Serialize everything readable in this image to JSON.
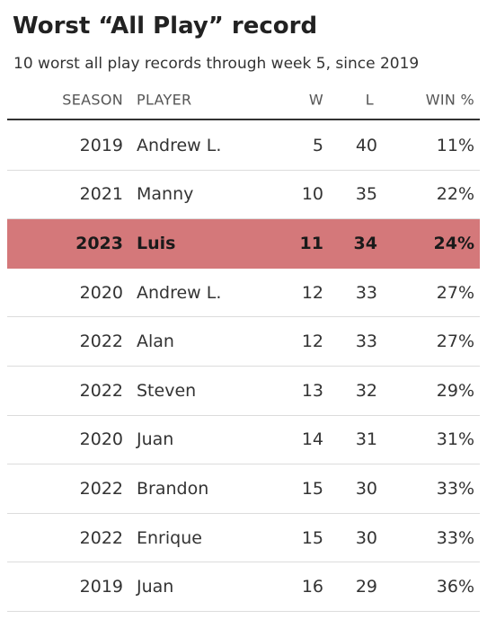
{
  "chart_data": {
    "type": "table",
    "title": "Worst “All Play” record",
    "subtitle": "10 worst all play records through week 5, since 2019",
    "columns": [
      "SEASON",
      "PLAYER",
      "W",
      "L",
      "WIN %"
    ],
    "rows": [
      {
        "season": "2019",
        "player": "Andrew L.",
        "w": "5",
        "l": "40",
        "pct": "11%",
        "highlight": false
      },
      {
        "season": "2021",
        "player": "Manny",
        "w": "10",
        "l": "35",
        "pct": "22%",
        "highlight": false
      },
      {
        "season": "2023",
        "player": "Luis",
        "w": "11",
        "l": "34",
        "pct": "24%",
        "highlight": true
      },
      {
        "season": "2020",
        "player": "Andrew L.",
        "w": "12",
        "l": "33",
        "pct": "27%",
        "highlight": false
      },
      {
        "season": "2022",
        "player": "Alan",
        "w": "12",
        "l": "33",
        "pct": "27%",
        "highlight": false
      },
      {
        "season": "2022",
        "player": "Steven",
        "w": "13",
        "l": "32",
        "pct": "29%",
        "highlight": false
      },
      {
        "season": "2020",
        "player": "Juan",
        "w": "14",
        "l": "31",
        "pct": "31%",
        "highlight": false
      },
      {
        "season": "2022",
        "player": "Brandon",
        "w": "15",
        "l": "30",
        "pct": "33%",
        "highlight": false
      },
      {
        "season": "2022",
        "player": "Enrique",
        "w": "15",
        "l": "30",
        "pct": "33%",
        "highlight": false
      },
      {
        "season": "2019",
        "player": "Juan",
        "w": "16",
        "l": "29",
        "pct": "36%",
        "highlight": false
      }
    ],
    "highlight_color": "#d4787a"
  }
}
